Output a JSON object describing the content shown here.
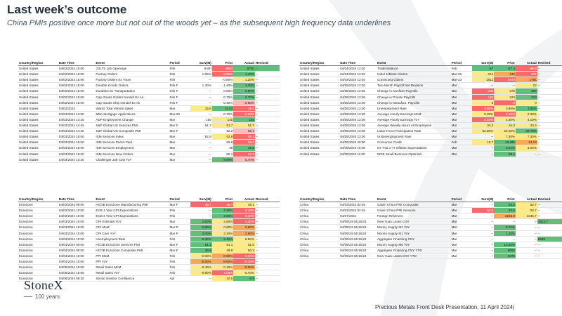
{
  "title": "Last week’s outcome",
  "subtitle": "China PMIs positive once more but not out of the woods yet – as the subsequent high frequency data underlines",
  "columns": [
    "Country/Region",
    "Date Time",
    "Event",
    "Period",
    "Surv(M)",
    "Prior",
    "Actual",
    "Revised"
  ],
  "footer": "Precious Metals Front Desk Presentation, 11 April 2024|",
  "logo": {
    "name": "StoneX",
    "sub": "100 years"
  },
  "colors": {
    "green": "#63be7b",
    "red": "#f8696b",
    "orange": "#f9a857",
    "yellow": "#fde98a"
  },
  "tables": {
    "us_left": [
      [
        "United States",
        "04/02/2024 15:00",
        "JOLTS Job Openings",
        "Feb",
        "8.8th",
        "8863",
        "8750",
        "--"
      ],
      [
        "United States",
        "04/02/2024 15:00",
        "Factory Orders",
        "Feb",
        "1.00%",
        "-3.60%",
        "1.40%",
        "--"
      ],
      [
        "United States",
        "04/02/2024 15:00",
        "Factory Orders Ex Trans",
        "Feb",
        "--",
        "-0.80%",
        "1.20%",
        "--"
      ],
      [
        "United States",
        "04/02/2024 15:00",
        "Durable Goods Orders",
        "Feb F",
        "1.40%",
        "1.40%",
        "1.30%",
        "--"
      ],
      [
        "United States",
        "04/02/2024 15:00",
        "Durables Ex Transportation",
        "Feb F",
        "--",
        "0.50%",
        "0.50%",
        "--"
      ],
      [
        "United States",
        "04/02/2024 15:00",
        "Cap Goods Orders Nondef Ex Air",
        "Feb F",
        "--",
        "0.70%",
        "0.70%",
        "--"
      ],
      [
        "United States",
        "04/02/2024 15:00",
        "Cap Goods Ship Nondef Ex Air",
        "Feb F",
        "--",
        "-0.40%",
        "-0.60%",
        "--"
      ],
      [
        "United States",
        "04/02/2024",
        "Wards Total Vehicle Sales",
        "Mar",
        "15.8",
        "15.83",
        "15.4",
        "--"
      ],
      [
        "United States",
        "04/03/2024 12:00",
        "MBA Mortgage Applications",
        "Mar-29",
        "--",
        "-0.70%",
        "-0.60%",
        "--"
      ],
      [
        "United States",
        "04/03/2024 13:15",
        "ADP Employment Change",
        "Mar",
        "150",
        "140",
        "184",
        "--"
      ],
      [
        "United States",
        "04/03/2024 14:45",
        "S&P Global US Services PMI",
        "Mar F",
        "51.7",
        "51.7",
        "51.7",
        "--"
      ],
      [
        "United States",
        "04/03/2024 14:45",
        "S&P Global US Composite PMI",
        "Mar F",
        "--",
        "52.2",
        "52.1",
        "--"
      ],
      [
        "United States",
        "04/03/2024 15:00",
        "ISM Services Index",
        "Mar",
        "52.8",
        "52.6",
        "51.4",
        "--"
      ],
      [
        "United States",
        "04/03/2024 15:00",
        "ISM Services Prices Paid",
        "Mar",
        "--",
        "58.6",
        "53.4",
        "--"
      ],
      [
        "United States",
        "04/03/2024 15:00",
        "ISM Services Employment",
        "Mar",
        "--",
        "48",
        "48.5",
        "--"
      ],
      [
        "United States",
        "04/03/2024 15:00",
        "ISM Services New Orders",
        "Mar",
        "--",
        "56.1",
        "54.4",
        "--"
      ],
      [
        "United States",
        "04/04/2024 12:30",
        "Challenger Job Cuts YoY",
        "Mar",
        "--",
        "8.60%",
        "0.70%",
        "--"
      ]
    ],
    "us_left_colors": [
      [
        "",
        "",
        "",
        "",
        "",
        "r",
        "g",
        "g"
      ],
      [
        "",
        "",
        "",
        "",
        "",
        "r",
        "g",
        ""
      ],
      [
        "",
        "",
        "",
        "",
        "",
        "",
        "y",
        ""
      ],
      [
        "",
        "",
        "",
        "",
        "",
        "",
        "g",
        ""
      ],
      [
        "",
        "",
        "",
        "",
        "",
        "",
        "g",
        ""
      ],
      [
        "",
        "",
        "",
        "",
        "",
        "",
        "g",
        ""
      ],
      [
        "",
        "",
        "",
        "",
        "",
        "",
        "lr",
        ""
      ],
      [
        "",
        "",
        "",
        "",
        "y",
        "g",
        "r",
        ""
      ],
      [
        "",
        "",
        "",
        "",
        "",
        "",
        "r",
        ""
      ],
      [
        "",
        "",
        "",
        "",
        "",
        "y",
        "g",
        ""
      ],
      [
        "",
        "",
        "",
        "",
        "",
        "y",
        "y",
        ""
      ],
      [
        "",
        "",
        "",
        "",
        "",
        "",
        "lr",
        ""
      ],
      [
        "",
        "",
        "",
        "",
        "",
        "y",
        "r",
        ""
      ],
      [
        "",
        "",
        "",
        "",
        "",
        "",
        "r",
        ""
      ],
      [
        "",
        "",
        "",
        "",
        "",
        "",
        "g",
        ""
      ],
      [
        "",
        "",
        "",
        "",
        "",
        "",
        "r",
        ""
      ],
      [
        "",
        "",
        "",
        "",
        "",
        "g",
        "lr",
        ""
      ]
    ],
    "us_right": [
      [
        "United States",
        "04/04/2024 13:30",
        "Trade Balance",
        "Feb",
        "-67",
        "-67.4",
        "-68.9",
        "--"
      ],
      [
        "United States",
        "04/04/2024 13:30",
        "Initial Jobless Claims",
        "Mar-30",
        "214",
        "210",
        "221",
        "--"
      ],
      [
        "United States",
        "04/04/2024 13:30",
        "Continuing Claims",
        "Mar-23",
        "1812",
        "1819",
        "1791",
        "--"
      ],
      [
        "United States",
        "04/05/2024 13:30",
        "Two-Month Payroll Net Revision",
        "Mar",
        "--",
        "--",
        "22",
        "--"
      ],
      [
        "United States",
        "04/05/2024 13:30",
        "Change in Nonfarm Payrolls",
        "Mar",
        "200",
        "275",
        "303",
        "--"
      ],
      [
        "United States",
        "04/05/2024 13:30",
        "Change in Private Payrolls",
        "Mar",
        "160",
        "223",
        "232",
        "--"
      ],
      [
        "United States",
        "04/05/2024 13:30",
        "Change in Manufact. Payrolls",
        "Mar",
        "5",
        "-4",
        "0",
        "--"
      ],
      [
        "United States",
        "04/05/2024 13:30",
        "Unemployment Rate",
        "Mar",
        "3.80%",
        "3.90%",
        "3.80%",
        "--"
      ],
      [
        "United States",
        "04/05/2024 13:30",
        "Average Hourly Earnings MoM",
        "Mar",
        "0.30%",
        "0.10%",
        "0.30%",
        "--"
      ],
      [
        "United States",
        "04/05/2024 13:30",
        "Average Hourly Earnings YoY",
        "Mar",
        "4.10%",
        "4.30%",
        "4.10%",
        "--"
      ],
      [
        "United States",
        "04/05/2024 13:30",
        "Average Weekly Hours All Employees",
        "Mar",
        "34.3",
        "34.3",
        "34.4",
        "--"
      ],
      [
        "United States",
        "04/05/2024 13:30",
        "Labor Force Participation Rate",
        "Mar",
        "62.50%",
        "62.50%",
        "62.70%",
        "--"
      ],
      [
        "United States",
        "04/05/2024 13:30",
        "Underemployment Rate",
        "Mar",
        "--",
        "7.30%",
        "7.30%",
        "--"
      ],
      [
        "United States",
        "04/05/2024 20:00",
        "Consumer Credit",
        "Feb",
        "16.7",
        "19.495",
        "14.13",
        "--"
      ],
      [
        "United States",
        "04/08/2024 16:00",
        "NY Fed 1-Yr Inflation Expectations",
        "Mar",
        "--",
        "3.04%",
        "3.00%",
        "--"
      ],
      [
        "United States",
        "04/09/2024 11:00",
        "NFIB Small Business Optimism",
        "Mar",
        "--",
        "89.4",
        "--",
        "--"
      ]
    ],
    "us_right_colors": [
      [
        "",
        "",
        "",
        "",
        "g",
        "g",
        "r",
        ""
      ],
      [
        "",
        "",
        "",
        "",
        "y",
        "o",
        "r",
        ""
      ],
      [
        "",
        "",
        "",
        "",
        "y",
        "r",
        "o",
        ""
      ],
      [
        "",
        "",
        "",
        "",
        "",
        "",
        "y",
        ""
      ],
      [
        "",
        "",
        "",
        "",
        "r",
        "y",
        "g",
        ""
      ],
      [
        "",
        "",
        "",
        "",
        "r",
        "y",
        "g",
        ""
      ],
      [
        "",
        "",
        "",
        "",
        "y",
        "r",
        "y",
        ""
      ],
      [
        "",
        "",
        "",
        "",
        "r",
        "y",
        "g",
        ""
      ],
      [
        "",
        "",
        "",
        "",
        "y",
        "r",
        "y",
        ""
      ],
      [
        "",
        "",
        "",
        "",
        "r",
        "y",
        "y",
        ""
      ],
      [
        "",
        "",
        "",
        "",
        "y",
        "y",
        "y",
        ""
      ],
      [
        "",
        "",
        "",
        "",
        "y",
        "y",
        "g",
        ""
      ],
      [
        "",
        "",
        "",
        "",
        "",
        "y",
        "y",
        ""
      ],
      [
        "",
        "",
        "",
        "",
        "y",
        "g",
        "o",
        ""
      ],
      [
        "",
        "",
        "",
        "",
        "",
        "g",
        "y",
        ""
      ],
      [
        "",
        "",
        "",
        "",
        "",
        "g",
        "",
        ""
      ]
    ],
    "eurozone": [
      [
        "Eurozone",
        "04/02/2024 09:00",
        "HCOB Eurozone Manufacturing PMI",
        "Mar F",
        "45.7",
        "45.7",
        "46.1",
        "--"
      ],
      [
        "Eurozone",
        "04/02/2024 10:00",
        "ECB 1 Year CPI Expectations",
        "Feb",
        "--",
        "3.30%",
        "3.10%",
        "--"
      ],
      [
        "Eurozone",
        "04/02/2024 10:00",
        "ECB 3 Year CPI Expectations",
        "Feb",
        "--",
        "2.50%",
        "2.40%",
        "--"
      ],
      [
        "Eurozone",
        "04/03/2024 10:00",
        "CPI Estimate YoY",
        "Mar",
        "2.50%",
        "2.60%",
        "2.40%",
        "--"
      ],
      [
        "Eurozone",
        "04/03/2024 10:00",
        "CPI MoM",
        "Mar P",
        "0.90%",
        "0.60%",
        "0.80%",
        "--"
      ],
      [
        "Eurozone",
        "04/03/2024 10:00",
        "CPI Core YoY",
        "Mar P",
        "3.00%",
        "3.10%",
        "2.90%",
        "--"
      ],
      [
        "Eurozone",
        "04/03/2024 10:00",
        "Unemployment Rate",
        "Feb",
        "6.40%",
        "6.40%",
        "6.50%",
        "--"
      ],
      [
        "Eurozone",
        "04/04/2024 09:00",
        "HCOB Eurozone Services PMI",
        "Mar F",
        "51.1",
        "51.1",
        "51.5",
        "--"
      ],
      [
        "Eurozone",
        "04/04/2024 09:00",
        "HCOB Eurozone Composite PMI",
        "Mar F",
        "49.9",
        "49.9",
        "50.3",
        "--"
      ],
      [
        "Eurozone",
        "04/04/2024 10:00",
        "PPI MoM",
        "Feb",
        "-0.60%",
        "-0.90%",
        "-1.00%",
        "--"
      ],
      [
        "Eurozone",
        "04/04/2024 10:00",
        "PPI YoY",
        "Feb",
        "-8.50%",
        "-8.60%",
        "-8.30%",
        "--"
      ],
      [
        "Eurozone",
        "04/05/2024 10:00",
        "Retail Sales MoM",
        "Feb",
        "-0.40%",
        "0.10%",
        "-0.50%",
        "--"
      ],
      [
        "Eurozone",
        "04/05/2024 10:00",
        "Retail Sales YoY",
        "Feb",
        "-0.80%",
        "-1.00%",
        "-0.70%",
        "--"
      ],
      [
        "Eurozone",
        "04/08/2024 09:30",
        "Sentix Investor Confidence",
        "Apr",
        "--",
        "-10.5",
        "-5.9",
        "--"
      ]
    ],
    "eurozone_colors": [
      [
        "",
        "",
        "",
        "",
        "r",
        "r",
        "y",
        ""
      ],
      [
        "",
        "",
        "",
        "",
        "",
        "g",
        "r",
        ""
      ],
      [
        "",
        "",
        "",
        "",
        "",
        "g",
        "r",
        ""
      ],
      [
        "",
        "",
        "",
        "",
        "g",
        "y",
        "r",
        ""
      ],
      [
        "",
        "",
        "",
        "",
        "g",
        "y",
        "o",
        ""
      ],
      [
        "",
        "",
        "",
        "",
        "g",
        "y",
        "o",
        ""
      ],
      [
        "",
        "",
        "",
        "",
        "g",
        "g",
        "y",
        ""
      ],
      [
        "",
        "",
        "",
        "",
        "g",
        "y",
        "y",
        ""
      ],
      [
        "",
        "",
        "",
        "",
        "g",
        "y",
        "y",
        ""
      ],
      [
        "",
        "",
        "",
        "",
        "y",
        "o",
        "r",
        ""
      ],
      [
        "",
        "",
        "",
        "",
        "o",
        "o",
        "r",
        ""
      ],
      [
        "",
        "",
        "",
        "",
        "y",
        "y",
        "o",
        ""
      ],
      [
        "",
        "",
        "",
        "",
        "y",
        "r",
        "y",
        ""
      ],
      [
        "",
        "",
        "",
        "",
        "",
        "y",
        "g",
        ""
      ]
    ],
    "china": [
      [
        "China",
        "04/03/2024 02:45",
        "Caixin China PMI Composite",
        "Mar",
        "--",
        "52.5",
        "52.7",
        "--"
      ],
      [
        "China",
        "04/03/2024 02:45",
        "Caixin China PMI Services",
        "Mar",
        "52.5",
        "52.5",
        "52.7",
        "--"
      ],
      [
        "China",
        "04/07/2024",
        "Foreign Reserves",
        "Mar",
        "--",
        "3225.8",
        "3245.7",
        "--"
      ],
      [
        "China",
        "04/09/24-04/15/24",
        "New Yuan Loans CNY",
        "Mar",
        "--",
        "--",
        "--",
        "4914.7"
      ],
      [
        "China",
        "04/09/24-04/15/24",
        "Money Supply M2 YoY",
        "Mar",
        "--",
        "8.70%",
        "--",
        "--"
      ],
      [
        "China",
        "04/09/24-04/15/24",
        "Money Supply M1 YoY",
        "Mar",
        "--",
        "1.20%",
        "--",
        "--"
      ],
      [
        "China",
        "04/09/24-04/15/24",
        "Aggregate Financing CNY",
        "Mar",
        "--",
        "--",
        "--",
        "6530"
      ],
      [
        "China",
        "04/09/24-04/15/24",
        "Money Supply M0 YoY",
        "Mar",
        "--",
        "12.50%",
        "--",
        "--"
      ],
      [
        "China",
        "04/09/24-04/15/24",
        "Aggregate Financing CNY YTD",
        "Mar",
        "--",
        "9060",
        "--",
        "--"
      ],
      [
        "China",
        "04/09/24-04/15/24",
        "New Yuan Loans CNY YTD",
        "Mar",
        "--",
        "6370",
        "--",
        "--"
      ]
    ],
    "china_colors": [
      [
        "",
        "",
        "",
        "",
        "",
        "g",
        "y",
        ""
      ],
      [
        "",
        "",
        "",
        "",
        "r",
        "g",
        "y",
        ""
      ],
      [
        "",
        "",
        "",
        "",
        "",
        "o",
        "y",
        ""
      ],
      [
        "",
        "",
        "",
        "",
        "",
        "",
        "",
        "g"
      ],
      [
        "",
        "",
        "",
        "",
        "",
        "g",
        "",
        ""
      ],
      [
        "",
        "",
        "",
        "",
        "",
        "g",
        "",
        ""
      ],
      [
        "",
        "",
        "",
        "",
        "",
        "",
        "",
        "g"
      ],
      [
        "",
        "",
        "",
        "",
        "",
        "g",
        "",
        ""
      ],
      [
        "",
        "",
        "",
        "",
        "",
        "g",
        "",
        ""
      ],
      [
        "",
        "",
        "",
        "",
        "",
        "g",
        "",
        ""
      ]
    ]
  }
}
